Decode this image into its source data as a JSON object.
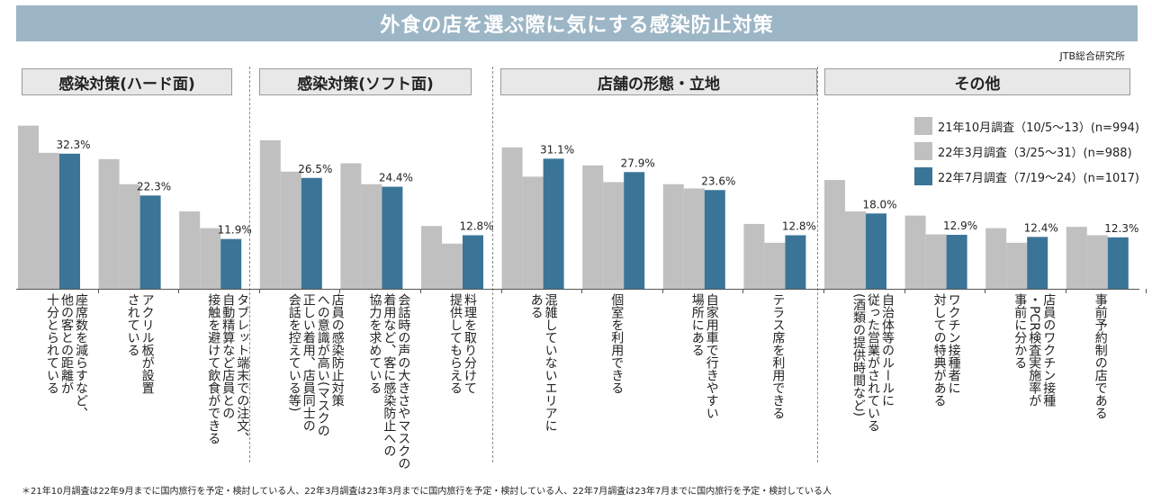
{
  "title": "外食の店を選ぶ際に気にする感染防止対策",
  "source": "JTB総合研究所",
  "groups": [
    "感染対策(ハード面)",
    "感染対策(ソフト面)",
    "店舗の形態・立地",
    "その他"
  ],
  "legend": [
    "21年10月調査（10/5〜13）(n=994)",
    "22年3月調査（3/25〜31）(n=988)",
    "22年7月調査（7/19〜24）(n=1017)"
  ],
  "colors": {
    "light": "#c0c0c0",
    "highlight": "#3a7598",
    "header_bg": "#9db6c6"
  },
  "footnote": "＊21年10月調査は22年9月までに国内旅行を予定・検討している人、22年3月調査は23年3月までに国内旅行を予定・検討している人、22年7月調査は23年7月までに国内旅行を予定・検討している人",
  "chart_data": {
    "type": "bar",
    "categories": [
      "座席数を減らすなど、\n他の客との距離が\n十分とられている",
      "アクリル板が設置\nされている",
      "タブレット端末での注文、\n自動精算など店員との\n接触を避けて飲食ができる",
      "店員の感染防止対策\nへの意識が高い(マスクの\n正しい着用、店員同士の\n会話を控えている等)",
      "会話時の声の大きさやマスクの\n着用など、客に感染防止への\n協力を求めている",
      "料理を取り分けて\n提供してもらえる",
      "混雑していないエリアに\nある",
      "個室を利用できる",
      "自家用車で行きやすい\n場所にある",
      "テラス席を利用できる",
      "自治体等のルールに\n従った営業がされている\n(酒類の提供時間など)",
      "ワクチン接種者に\n対しての特典がある",
      "店員のワクチン接種\n・PCR検査実施率が\n事前に分かる",
      "事前予約制の店である"
    ],
    "series": [
      {
        "name": "21年10月調査（10/5〜13）(n=994)",
        "values": [
          39.0,
          31.0,
          18.5,
          35.5,
          30.0,
          15.0,
          33.8,
          29.5,
          25.0,
          15.5,
          26.0,
          17.5,
          14.5,
          14.8
        ]
      },
      {
        "name": "22年3月調査（3/25〜31）(n=988)",
        "values": [
          32.5,
          25.0,
          14.5,
          28.0,
          25.0,
          10.8,
          26.8,
          25.5,
          24.0,
          11.0,
          18.5,
          13.0,
          11.0,
          12.8
        ]
      },
      {
        "name": "22年7月調査（7/19〜24）(n=1017)",
        "values": [
          32.3,
          22.3,
          11.9,
          26.5,
          24.4,
          12.8,
          31.1,
          27.9,
          23.6,
          12.8,
          18.0,
          12.9,
          12.4,
          12.3
        ]
      }
    ],
    "data_labels": [
      "32.3%",
      "22.3%",
      "11.9%",
      "26.5%",
      "24.4%",
      "12.8%",
      "31.1%",
      "27.9%",
      "23.6%",
      "12.8%",
      "18.0%",
      "12.9%",
      "12.4%",
      "12.3%"
    ]
  }
}
